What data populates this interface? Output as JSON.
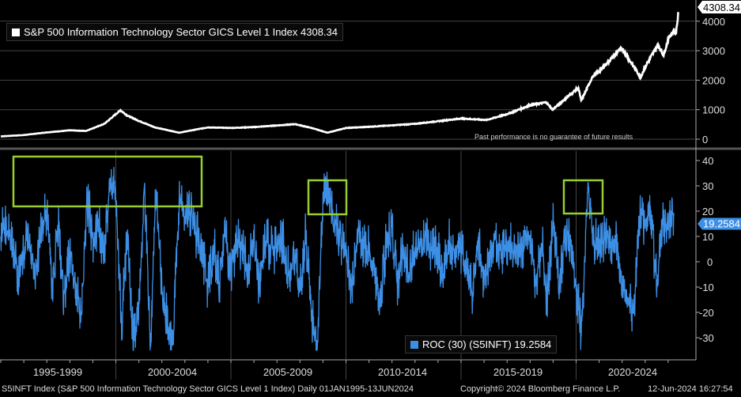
{
  "chart_data": [
    {
      "type": "line",
      "title": "S&P 500 Information Technology Sector GICS Level 1 Index",
      "legend": "S&P 500 Information Technology Sector GICS Level 1 Index 4308.34",
      "last_value": "4308.34",
      "color": "#ffffff",
      "yticks": [
        0,
        1000,
        2000,
        3000,
        4000
      ],
      "ylim": [
        -200,
        4500
      ],
      "x": [
        1995.0,
        1996.0,
        1997.0,
        1998.0,
        1998.7,
        1999.5,
        2000.2,
        2000.5,
        2001.0,
        2001.7,
        2002.75,
        2003.5,
        2004.0,
        2005.0,
        2006.0,
        2007.8,
        2008.5,
        2009.2,
        2010.0,
        2011.0,
        2012.0,
        2013.0,
        2014.0,
        2015.0,
        2016.1,
        2017.0,
        2018.0,
        2018.7,
        2018.98,
        2019.5,
        2020.1,
        2020.22,
        2020.7,
        2021.0,
        2021.99,
        2022.3,
        2022.8,
        2023.0,
        2023.55,
        2023.8,
        2024.0,
        2024.25,
        2024.33,
        2024.45
      ],
      "y": [
        95,
        140,
        230,
        300,
        280,
        520,
        980,
        800,
        620,
        400,
        220,
        330,
        400,
        380,
        410,
        510,
        380,
        220,
        380,
        420,
        470,
        520,
        610,
        700,
        650,
        850,
        1150,
        1250,
        1000,
        1350,
        1750,
        1300,
        2100,
        2300,
        3100,
        2700,
        2100,
        2450,
        3200,
        2850,
        3400,
        3700,
        3550,
        4308.34
      ]
    },
    {
      "type": "line",
      "legend": "ROC (30) (S5INFT) 19.2584",
      "last_value": "19.2584",
      "color": "#3d8fe6",
      "yticks": [
        40,
        30,
        20,
        10,
        0,
        -10,
        -20,
        -30
      ],
      "ylim": [
        -38,
        43
      ],
      "x_start": 1995.0,
      "x_step": 0.25,
      "quarterly_values": [
        10,
        15,
        5,
        -5,
        5,
        12,
        -8,
        15,
        20,
        -10,
        15,
        -15,
        5,
        -12,
        -20,
        25,
        10,
        15,
        5,
        30,
        25,
        -25,
        10,
        -30,
        -20,
        30,
        -35,
        30,
        -10,
        -25,
        -30,
        25,
        15,
        20,
        10,
        5,
        -10,
        5,
        -8,
        12,
        -5,
        8,
        5,
        -3,
        8,
        -12,
        10,
        5,
        5,
        8,
        -5,
        3,
        -12,
        10,
        -20,
        -32,
        25,
        30,
        15,
        10,
        5,
        -12,
        12,
        8,
        5,
        -5,
        -15,
        8,
        12,
        -8,
        5,
        -5,
        5,
        6,
        8,
        5,
        3,
        -5,
        8,
        5,
        5,
        -3,
        -12,
        10,
        -8,
        5,
        10,
        3,
        8,
        5,
        6,
        5,
        10,
        -8,
        8,
        -15,
        15,
        -8,
        10,
        8,
        -10,
        -28,
        30,
        10,
        5,
        10,
        8,
        12,
        -10,
        -15,
        -20,
        18,
        15,
        20,
        -10,
        15,
        12,
        19.26
      ]
    }
  ],
  "xaxis": {
    "labels": [
      "1995-1999",
      "2000-2004",
      "2005-2009",
      "2010-2014",
      "2015-2019",
      "2020-2024"
    ]
  },
  "disclaimer": "Past performance is no guarantee of future results",
  "footer": {
    "index": "S5INFT Index (S&P 500 Information Technology Sector GICS Level 1 Index)  Daily 01JAN1995-13JUN2024",
    "copyright": "Copyright© 2024 Bloomberg Finance L.P.",
    "timestamp": "12-Jun-2024 16:27:54"
  },
  "highlight_color": "#9acd32"
}
